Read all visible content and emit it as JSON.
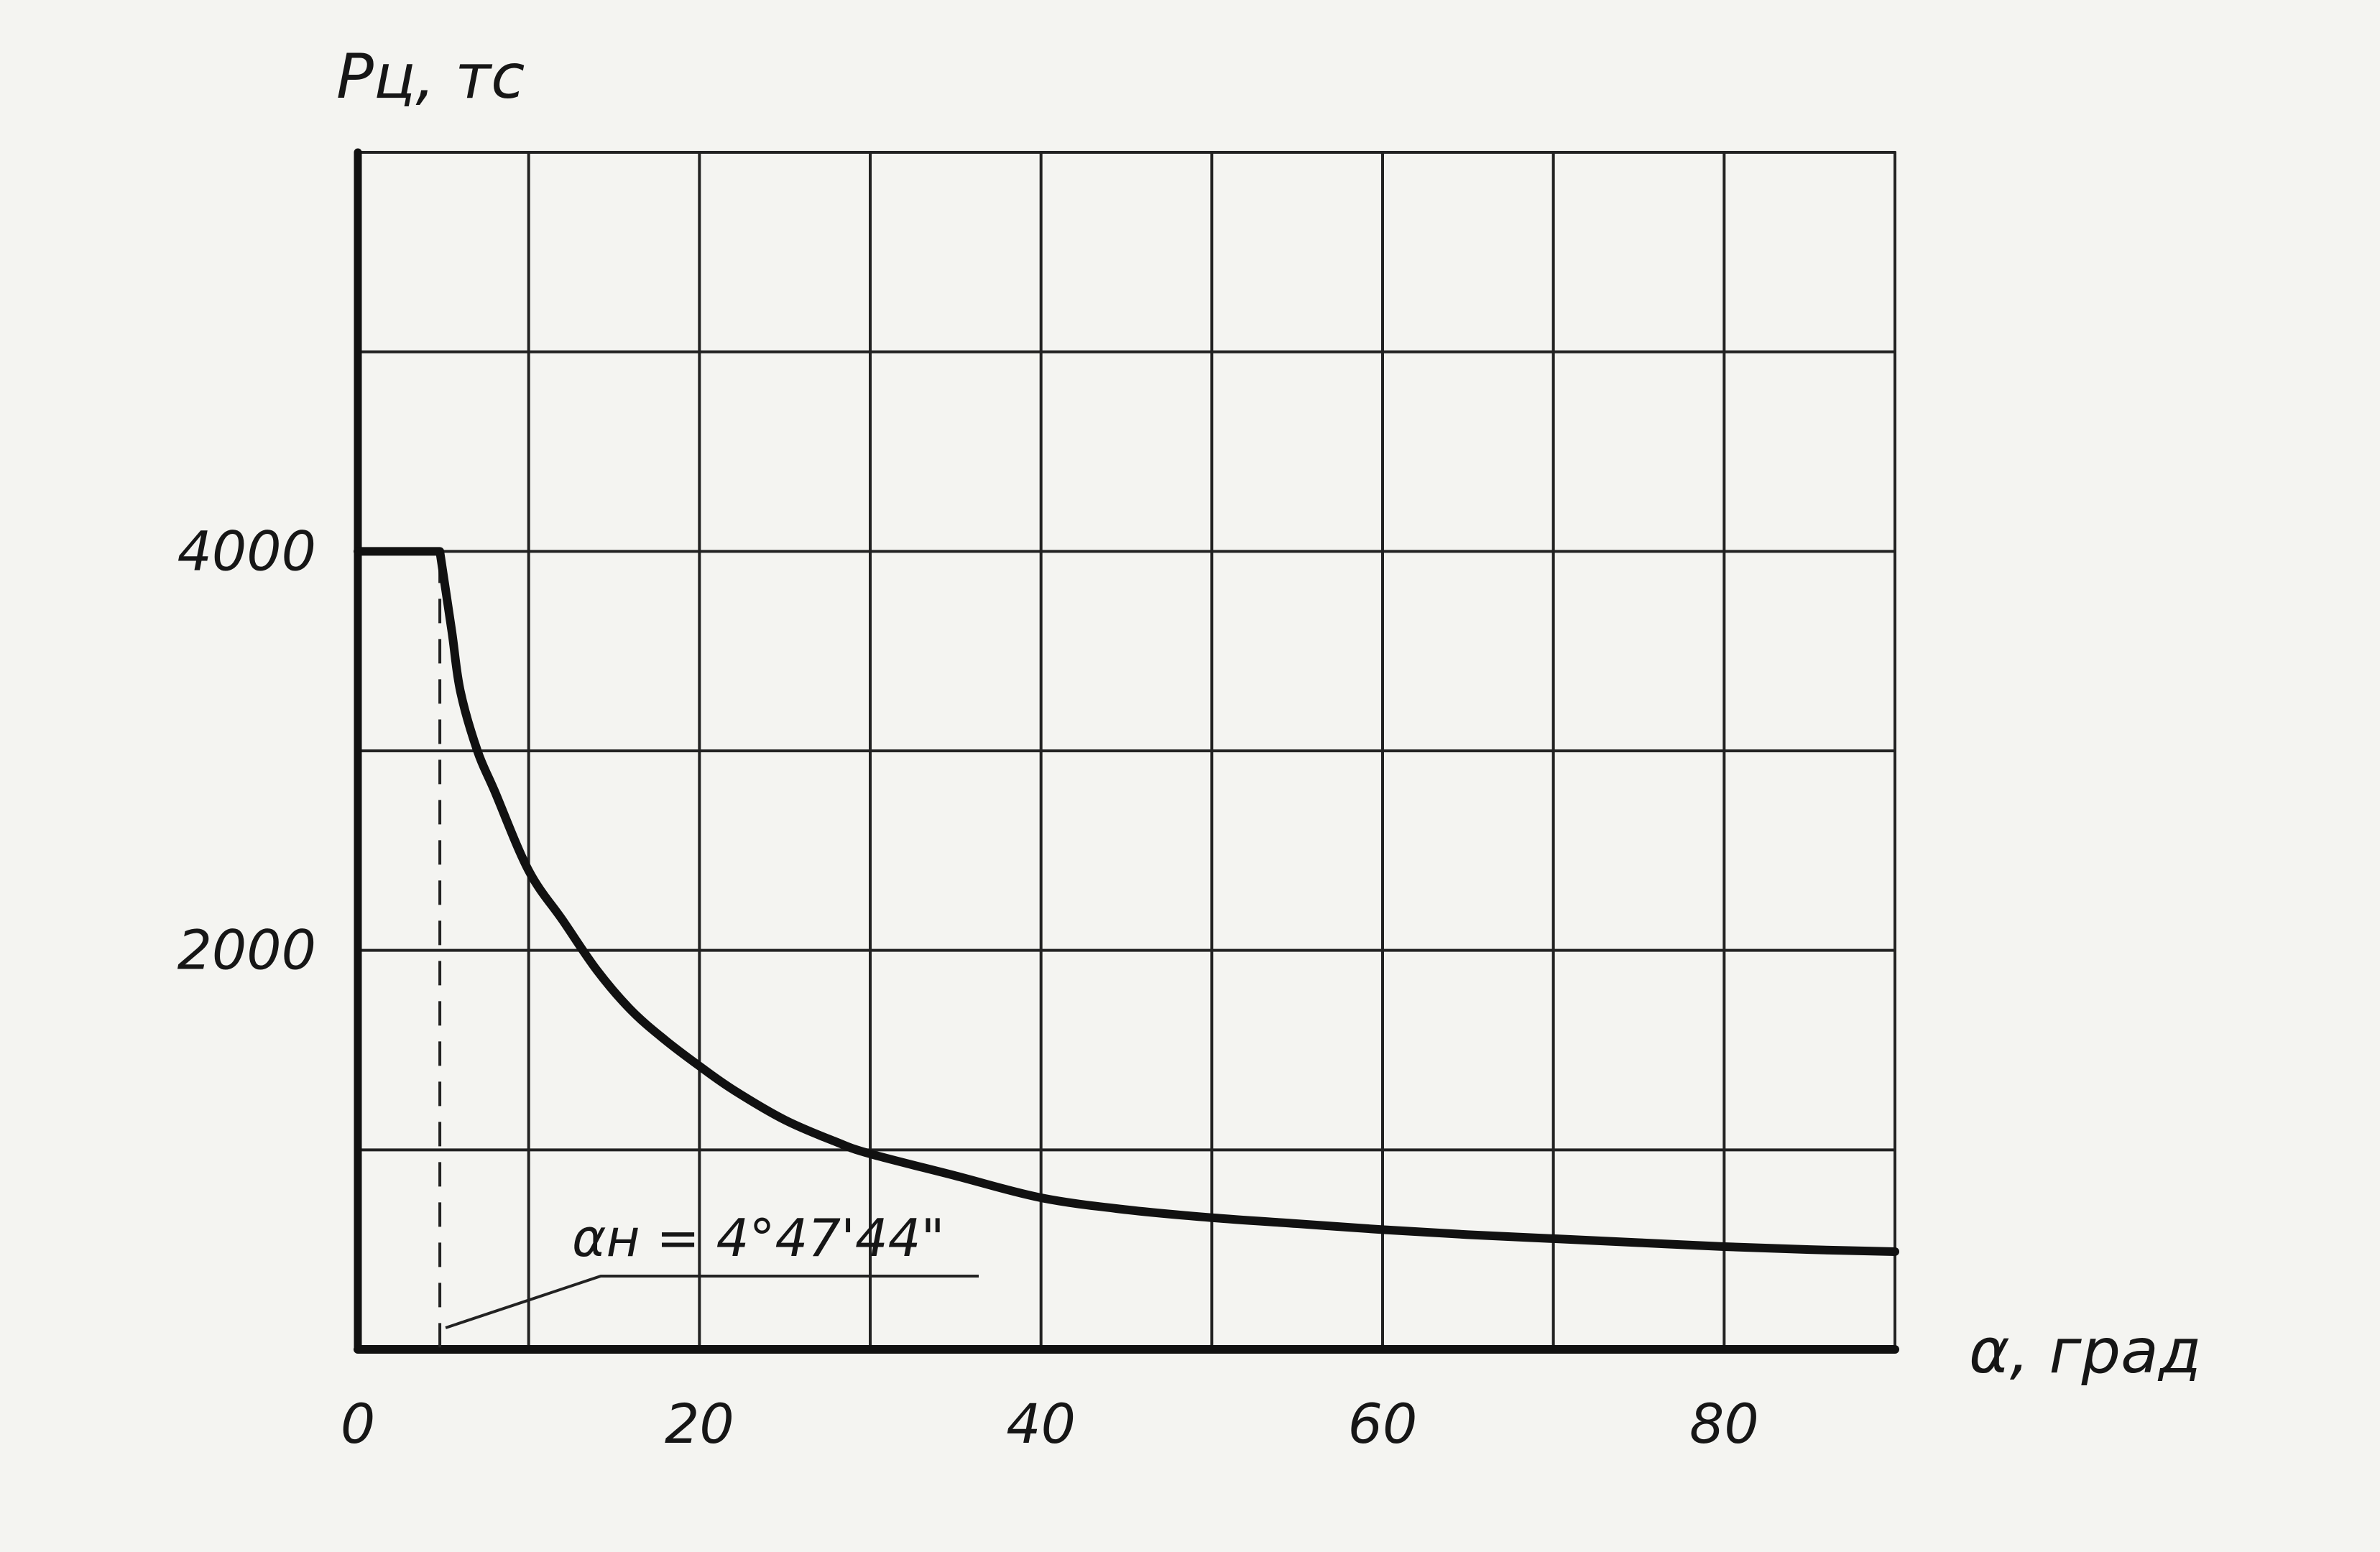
{
  "chart_data": {
    "type": "line",
    "title": "",
    "ylabel": "Pц, тс",
    "xlabel": "α, град",
    "xlim": [
      0,
      90
    ],
    "ylim": [
      0,
      6000
    ],
    "x_ticks": [
      0,
      20,
      40,
      60,
      80
    ],
    "x_tick_labels": [
      "0",
      "20",
      "40",
      "60",
      "80"
    ],
    "y_ticks": [
      2000,
      4000
    ],
    "y_tick_labels": [
      "2000",
      "4000"
    ],
    "grid": true,
    "grid_x_step": 10,
    "grid_y_step": 1000,
    "marker_x": 4.8,
    "annotation": "αн = 4°47'44\"",
    "series": [
      {
        "x": [
          0,
          4.8,
          5.5,
          6,
          7,
          8,
          10,
          12,
          14,
          16,
          18,
          20,
          22,
          25,
          28,
          30,
          35,
          40,
          45,
          50,
          55,
          60,
          65,
          70,
          75,
          80,
          85,
          90
        ],
        "values": [
          4000,
          4000,
          3600,
          3300,
          3000,
          2800,
          2400,
          2150,
          1900,
          1700,
          1550,
          1420,
          1300,
          1150,
          1040,
          980,
          870,
          760,
          700,
          660,
          630,
          600,
          575,
          555,
          535,
          515,
          500,
          490
        ]
      }
    ]
  }
}
